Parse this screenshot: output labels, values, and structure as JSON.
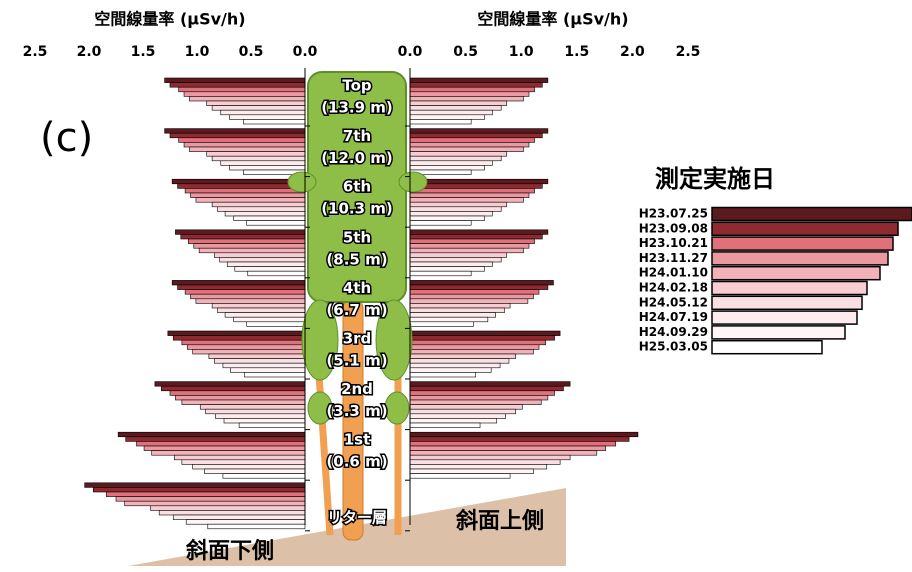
{
  "chart_data": {
    "type": "bar",
    "panel_label": "(c)",
    "categories": [
      "Top",
      "7th",
      "6th",
      "5th",
      "4th",
      "3rd",
      "2nd",
      "1st",
      "リター層"
    ],
    "heights": [
      "(13.9 m)",
      "(12.0 m)",
      "(10.3 m)",
      "(8.5 m)",
      "(6.7 m)",
      "(5.1 m)",
      "(3.3 m)",
      "(0.6 m)",
      null
    ],
    "left_axis": {
      "xlabel": "空間線量率 (μSv/h)",
      "xlim": [
        2.5,
        0
      ],
      "xticks": [
        {
          "value": 2.5,
          "label": "2.5"
        },
        {
          "value": 2,
          "label": "2.0"
        },
        {
          "value": 1.5,
          "label": "1.5"
        },
        {
          "value": 1,
          "label": "1.0"
        },
        {
          "value": 0.5,
          "label": "0.5"
        },
        {
          "value": 0,
          "label": "0.0"
        }
      ]
    },
    "right_axis": {
      "xlabel": "空間線量率 (μSv/h)",
      "xlim": [
        0,
        2.5
      ],
      "xticks": [
        {
          "value": 0,
          "label": "0.0"
        },
        {
          "value": 0.5,
          "label": "0.5"
        },
        {
          "value": 1,
          "label": "1.0"
        },
        {
          "value": 1.5,
          "label": "1.5"
        },
        {
          "value": 2,
          "label": "2.0"
        },
        {
          "value": 2.5,
          "label": "2.5"
        }
      ]
    },
    "legend_title": "測定実施日",
    "downslope_label": "斜面下側",
    "upslope_label": "斜面上側",
    "series": [
      {
        "name": "H23.07.25",
        "color": "#5a1a1e",
        "left_values": [
          1.3,
          1.3,
          1.23,
          1.2,
          1.23,
          1.27,
          1.39,
          1.73,
          2.04
        ],
        "right_values": [
          1.24,
          1.24,
          1.24,
          1.24,
          1.29,
          1.35,
          1.44,
          2.05,
          null
        ]
      },
      {
        "name": "H23.09.08",
        "color": "#8e2a30",
        "left_values": [
          1.25,
          1.25,
          1.18,
          1.15,
          1.18,
          1.22,
          1.33,
          1.66,
          1.96
        ],
        "right_values": [
          1.19,
          1.19,
          1.19,
          1.19,
          1.24,
          1.3,
          1.38,
          1.97,
          null
        ]
      },
      {
        "name": "H23.10.21",
        "color": "#e0707a",
        "left_values": [
          1.17,
          1.17,
          1.11,
          1.08,
          1.11,
          1.14,
          1.25,
          1.56,
          1.84
        ],
        "right_values": [
          1.12,
          1.12,
          1.12,
          1.12,
          1.16,
          1.22,
          1.3,
          1.85,
          null
        ]
      },
      {
        "name": "H23.11.27",
        "color": "#ec98a0",
        "left_values": [
          1.12,
          1.12,
          1.06,
          1.03,
          1.06,
          1.09,
          1.2,
          1.49,
          1.75
        ],
        "right_values": [
          1.07,
          1.07,
          1.07,
          1.07,
          1.11,
          1.16,
          1.24,
          1.76,
          null
        ]
      },
      {
        "name": "H24.01.10",
        "color": "#f3b2b8",
        "left_values": [
          1.07,
          1.07,
          1.01,
          0.98,
          1.01,
          1.04,
          1.14,
          1.42,
          1.67
        ],
        "right_values": [
          1.02,
          1.02,
          1.02,
          1.02,
          1.06,
          1.11,
          1.18,
          1.68,
          null
        ]
      },
      {
        "name": "H24.02.18",
        "color": "#f7cdd1",
        "left_values": [
          0.91,
          0.91,
          0.86,
          0.84,
          0.86,
          0.89,
          0.97,
          1.21,
          1.43
        ],
        "right_values": [
          0.87,
          0.87,
          0.87,
          0.87,
          0.9,
          0.95,
          1.01,
          1.44,
          null
        ]
      },
      {
        "name": "H24.05.12",
        "color": "#fadfe2",
        "left_values": [
          0.86,
          0.86,
          0.81,
          0.79,
          0.81,
          0.84,
          0.92,
          1.14,
          1.35
        ],
        "right_values": [
          0.82,
          0.82,
          0.82,
          0.82,
          0.85,
          0.89,
          0.95,
          1.35,
          null
        ]
      },
      {
        "name": "H24.07.19",
        "color": "#fcecee",
        "left_values": [
          0.78,
          0.78,
          0.74,
          0.72,
          0.74,
          0.76,
          0.83,
          1.04,
          1.22
        ],
        "right_values": [
          0.74,
          0.74,
          0.74,
          0.74,
          0.77,
          0.81,
          0.86,
          1.23,
          null
        ]
      },
      {
        "name": "H24.09.29",
        "color": "#fff5f6",
        "left_values": [
          0.7,
          0.7,
          0.66,
          0.65,
          0.66,
          0.69,
          0.75,
          0.93,
          1.1
        ],
        "right_values": [
          0.67,
          0.67,
          0.67,
          0.67,
          0.7,
          0.73,
          0.78,
          1.11,
          null
        ]
      },
      {
        "name": "H25.03.05",
        "color": "#ffffff",
        "left_values": [
          0.57,
          0.57,
          0.54,
          0.53,
          0.54,
          0.56,
          0.61,
          0.76,
          0.9
        ],
        "right_values": [
          0.55,
          0.55,
          0.55,
          0.55,
          0.57,
          0.59,
          0.63,
          0.9,
          null
        ]
      }
    ]
  }
}
